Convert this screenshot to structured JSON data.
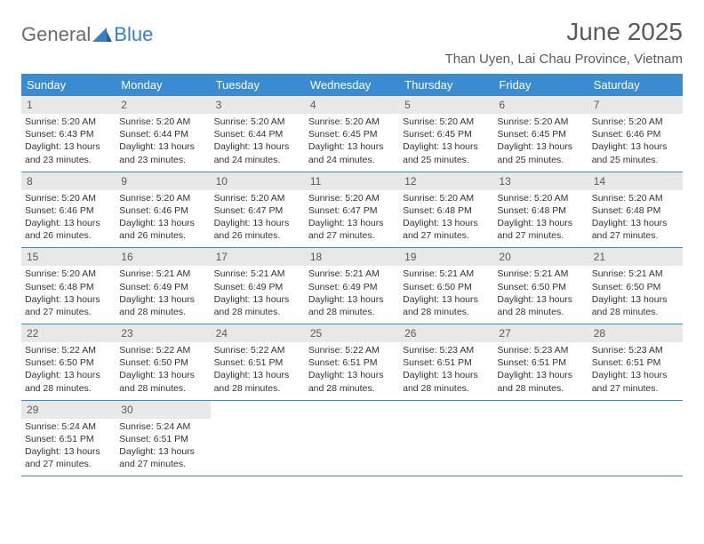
{
  "logo": {
    "general": "General",
    "blue": "Blue"
  },
  "header": {
    "title": "June 2025",
    "subtitle": "Than Uyen, Lai Chau Province, Vietnam"
  },
  "colors": {
    "header_bg": "#3a8bd0",
    "header_text": "#ffffff",
    "daynum_bg": "#e8e8e8",
    "text": "#333333",
    "logo_gray": "#6b6b6b",
    "logo_blue": "#3a7fc4",
    "border": "#3a8bd0"
  },
  "weekdays": [
    "Sunday",
    "Monday",
    "Tuesday",
    "Wednesday",
    "Thursday",
    "Friday",
    "Saturday"
  ],
  "weeks": [
    [
      {
        "n": "1",
        "sr": "Sunrise: 5:20 AM",
        "ss": "Sunset: 6:43 PM",
        "dl1": "Daylight: 13 hours",
        "dl2": "and 23 minutes."
      },
      {
        "n": "2",
        "sr": "Sunrise: 5:20 AM",
        "ss": "Sunset: 6:44 PM",
        "dl1": "Daylight: 13 hours",
        "dl2": "and 23 minutes."
      },
      {
        "n": "3",
        "sr": "Sunrise: 5:20 AM",
        "ss": "Sunset: 6:44 PM",
        "dl1": "Daylight: 13 hours",
        "dl2": "and 24 minutes."
      },
      {
        "n": "4",
        "sr": "Sunrise: 5:20 AM",
        "ss": "Sunset: 6:45 PM",
        "dl1": "Daylight: 13 hours",
        "dl2": "and 24 minutes."
      },
      {
        "n": "5",
        "sr": "Sunrise: 5:20 AM",
        "ss": "Sunset: 6:45 PM",
        "dl1": "Daylight: 13 hours",
        "dl2": "and 25 minutes."
      },
      {
        "n": "6",
        "sr": "Sunrise: 5:20 AM",
        "ss": "Sunset: 6:45 PM",
        "dl1": "Daylight: 13 hours",
        "dl2": "and 25 minutes."
      },
      {
        "n": "7",
        "sr": "Sunrise: 5:20 AM",
        "ss": "Sunset: 6:46 PM",
        "dl1": "Daylight: 13 hours",
        "dl2": "and 25 minutes."
      }
    ],
    [
      {
        "n": "8",
        "sr": "Sunrise: 5:20 AM",
        "ss": "Sunset: 6:46 PM",
        "dl1": "Daylight: 13 hours",
        "dl2": "and 26 minutes."
      },
      {
        "n": "9",
        "sr": "Sunrise: 5:20 AM",
        "ss": "Sunset: 6:46 PM",
        "dl1": "Daylight: 13 hours",
        "dl2": "and 26 minutes."
      },
      {
        "n": "10",
        "sr": "Sunrise: 5:20 AM",
        "ss": "Sunset: 6:47 PM",
        "dl1": "Daylight: 13 hours",
        "dl2": "and 26 minutes."
      },
      {
        "n": "11",
        "sr": "Sunrise: 5:20 AM",
        "ss": "Sunset: 6:47 PM",
        "dl1": "Daylight: 13 hours",
        "dl2": "and 27 minutes."
      },
      {
        "n": "12",
        "sr": "Sunrise: 5:20 AM",
        "ss": "Sunset: 6:48 PM",
        "dl1": "Daylight: 13 hours",
        "dl2": "and 27 minutes."
      },
      {
        "n": "13",
        "sr": "Sunrise: 5:20 AM",
        "ss": "Sunset: 6:48 PM",
        "dl1": "Daylight: 13 hours",
        "dl2": "and 27 minutes."
      },
      {
        "n": "14",
        "sr": "Sunrise: 5:20 AM",
        "ss": "Sunset: 6:48 PM",
        "dl1": "Daylight: 13 hours",
        "dl2": "and 27 minutes."
      }
    ],
    [
      {
        "n": "15",
        "sr": "Sunrise: 5:20 AM",
        "ss": "Sunset: 6:48 PM",
        "dl1": "Daylight: 13 hours",
        "dl2": "and 27 minutes."
      },
      {
        "n": "16",
        "sr": "Sunrise: 5:21 AM",
        "ss": "Sunset: 6:49 PM",
        "dl1": "Daylight: 13 hours",
        "dl2": "and 28 minutes."
      },
      {
        "n": "17",
        "sr": "Sunrise: 5:21 AM",
        "ss": "Sunset: 6:49 PM",
        "dl1": "Daylight: 13 hours",
        "dl2": "and 28 minutes."
      },
      {
        "n": "18",
        "sr": "Sunrise: 5:21 AM",
        "ss": "Sunset: 6:49 PM",
        "dl1": "Daylight: 13 hours",
        "dl2": "and 28 minutes."
      },
      {
        "n": "19",
        "sr": "Sunrise: 5:21 AM",
        "ss": "Sunset: 6:50 PM",
        "dl1": "Daylight: 13 hours",
        "dl2": "and 28 minutes."
      },
      {
        "n": "20",
        "sr": "Sunrise: 5:21 AM",
        "ss": "Sunset: 6:50 PM",
        "dl1": "Daylight: 13 hours",
        "dl2": "and 28 minutes."
      },
      {
        "n": "21",
        "sr": "Sunrise: 5:21 AM",
        "ss": "Sunset: 6:50 PM",
        "dl1": "Daylight: 13 hours",
        "dl2": "and 28 minutes."
      }
    ],
    [
      {
        "n": "22",
        "sr": "Sunrise: 5:22 AM",
        "ss": "Sunset: 6:50 PM",
        "dl1": "Daylight: 13 hours",
        "dl2": "and 28 minutes."
      },
      {
        "n": "23",
        "sr": "Sunrise: 5:22 AM",
        "ss": "Sunset: 6:50 PM",
        "dl1": "Daylight: 13 hours",
        "dl2": "and 28 minutes."
      },
      {
        "n": "24",
        "sr": "Sunrise: 5:22 AM",
        "ss": "Sunset: 6:51 PM",
        "dl1": "Daylight: 13 hours",
        "dl2": "and 28 minutes."
      },
      {
        "n": "25",
        "sr": "Sunrise: 5:22 AM",
        "ss": "Sunset: 6:51 PM",
        "dl1": "Daylight: 13 hours",
        "dl2": "and 28 minutes."
      },
      {
        "n": "26",
        "sr": "Sunrise: 5:23 AM",
        "ss": "Sunset: 6:51 PM",
        "dl1": "Daylight: 13 hours",
        "dl2": "and 28 minutes."
      },
      {
        "n": "27",
        "sr": "Sunrise: 5:23 AM",
        "ss": "Sunset: 6:51 PM",
        "dl1": "Daylight: 13 hours",
        "dl2": "and 28 minutes."
      },
      {
        "n": "28",
        "sr": "Sunrise: 5:23 AM",
        "ss": "Sunset: 6:51 PM",
        "dl1": "Daylight: 13 hours",
        "dl2": "and 27 minutes."
      }
    ],
    [
      {
        "n": "29",
        "sr": "Sunrise: 5:24 AM",
        "ss": "Sunset: 6:51 PM",
        "dl1": "Daylight: 13 hours",
        "dl2": "and 27 minutes."
      },
      {
        "n": "30",
        "sr": "Sunrise: 5:24 AM",
        "ss": "Sunset: 6:51 PM",
        "dl1": "Daylight: 13 hours",
        "dl2": "and 27 minutes."
      },
      null,
      null,
      null,
      null,
      null
    ]
  ]
}
